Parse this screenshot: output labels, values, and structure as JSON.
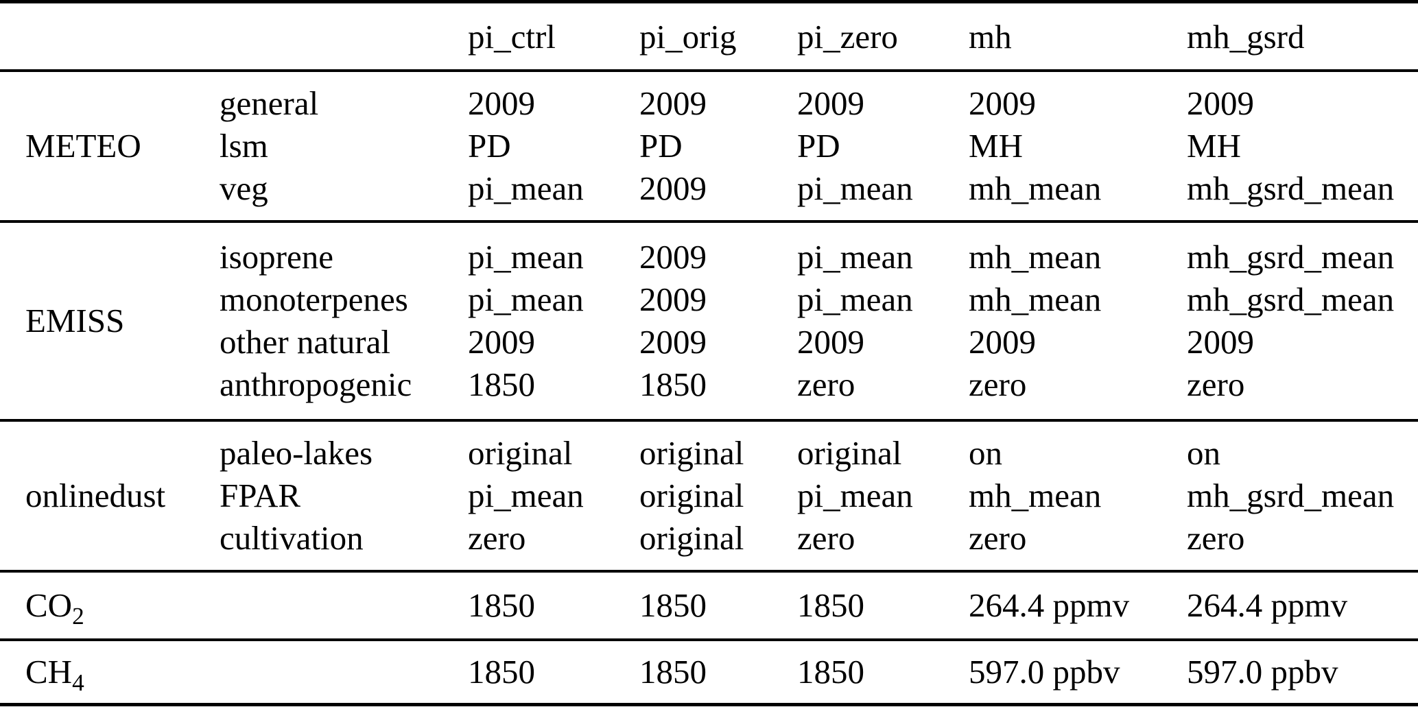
{
  "colors": {
    "background": "#ffffff",
    "text": "#000000",
    "rule": "#000000"
  },
  "table": {
    "column_headers": [
      "pi_ctrl",
      "pi_orig",
      "pi_zero",
      "mh",
      "mh_gsrd"
    ],
    "sections": [
      {
        "group": {
          "base": "METEO",
          "sub": ""
        },
        "rows": [
          {
            "param": "general",
            "values": [
              "2009",
              "2009",
              "2009",
              "2009",
              "2009"
            ]
          },
          {
            "param": "lsm",
            "values": [
              "PD",
              "PD",
              "PD",
              "MH",
              "MH"
            ]
          },
          {
            "param": "veg",
            "values": [
              "pi_mean",
              "2009",
              "pi_mean",
              "mh_mean",
              "mh_gsrd_mean"
            ]
          }
        ]
      },
      {
        "group": {
          "base": "EMISS",
          "sub": ""
        },
        "rows": [
          {
            "param": "isoprene",
            "values": [
              "pi_mean",
              "2009",
              "pi_mean",
              "mh_mean",
              "mh_gsrd_mean"
            ]
          },
          {
            "param": "monoterpenes",
            "values": [
              "pi_mean",
              "2009",
              "pi_mean",
              "mh_mean",
              "mh_gsrd_mean"
            ]
          },
          {
            "param": "other natural",
            "values": [
              "2009",
              "2009",
              "2009",
              "2009",
              "2009"
            ]
          },
          {
            "param": "anthropogenic",
            "values": [
              "1850",
              "1850",
              "zero",
              "zero",
              "zero"
            ]
          }
        ]
      },
      {
        "group": {
          "base": "onlinedust",
          "sub": ""
        },
        "rows": [
          {
            "param": "paleo-lakes",
            "values": [
              "original",
              "original",
              "original",
              "on",
              "on"
            ]
          },
          {
            "param": "FPAR",
            "values": [
              "pi_mean",
              "original",
              "pi_mean",
              "mh_mean",
              "mh_gsrd_mean"
            ]
          },
          {
            "param": "cultivation",
            "values": [
              "zero",
              "original",
              "zero",
              "zero",
              "zero"
            ]
          }
        ]
      },
      {
        "group": {
          "base": "CO",
          "sub": "2"
        },
        "rows": [
          {
            "param": "",
            "values": [
              "1850",
              "1850",
              "1850",
              "264.4 ppmv",
              "264.4 ppmv"
            ]
          }
        ]
      },
      {
        "group": {
          "base": "CH",
          "sub": "4"
        },
        "rows": [
          {
            "param": "",
            "values": [
              "1850",
              "1850",
              "1850",
              "597.0 ppbv",
              "597.0 ppbv"
            ]
          }
        ]
      }
    ]
  }
}
